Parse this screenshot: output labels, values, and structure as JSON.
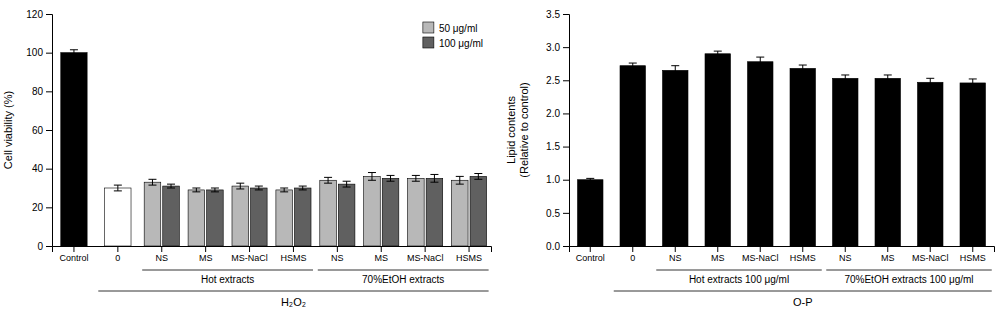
{
  "chart_data": [
    {
      "type": "bar",
      "ylabel": "Cell viability (%)",
      "xlabel": "H₂O₂",
      "annotations": [
        "Hot extracts",
        "70%EtOH extracts"
      ],
      "categories": [
        "Control",
        "0",
        "NS",
        "MS",
        "MS-NaCl",
        "HSMS",
        "NS",
        "MS",
        "MS-NaCl",
        "HSMS"
      ],
      "series": [
        {
          "values": [
            100,
            30,
            null,
            null,
            null,
            null,
            null,
            null,
            null,
            null
          ],
          "errors": [
            1.5,
            1.5,
            null,
            null,
            null,
            null,
            null,
            null,
            null,
            null
          ],
          "colors": [
            "#000000",
            "#ffffff",
            null,
            null,
            null,
            null,
            null,
            null,
            null,
            null
          ]
        },
        {
          "name": "50 μg/ml",
          "color": "#b8b8b8",
          "values": [
            null,
            null,
            33,
            29,
            31,
            29,
            34,
            36,
            35,
            34
          ],
          "errors": [
            null,
            null,
            1.5,
            1.0,
            1.5,
            1.0,
            1.5,
            2.0,
            1.5,
            2.0
          ]
        },
        {
          "name": "100 μg/ml",
          "color": "#606060",
          "values": [
            null,
            null,
            31,
            29,
            30,
            30,
            32,
            35,
            35,
            36
          ],
          "errors": [
            null,
            null,
            1.0,
            1.0,
            1.0,
            1.0,
            1.5,
            1.5,
            2.0,
            1.5
          ]
        }
      ],
      "ylim": [
        0,
        120
      ],
      "yticks": [
        0,
        20,
        40,
        60,
        80,
        100,
        120
      ],
      "legend": "upper right"
    },
    {
      "type": "bar",
      "ylabel": "Lipid contents\n(Relative to control)",
      "xlabel": "O-P",
      "annotations": [
        "Hot extracts 100 μg/ml",
        "70%EtOH extracts 100 μg/ml"
      ],
      "categories": [
        "Control",
        "0",
        "NS",
        "MS",
        "MS-NaCl",
        "HSMS",
        "NS",
        "MS",
        "MS-NaCl",
        "HSMS"
      ],
      "values": [
        1.0,
        2.72,
        2.65,
        2.9,
        2.78,
        2.68,
        2.53,
        2.53,
        2.47,
        2.46
      ],
      "errors": [
        0.02,
        0.04,
        0.07,
        0.04,
        0.07,
        0.05,
        0.05,
        0.05,
        0.06,
        0.06
      ],
      "color": "#000000",
      "ylim": [
        0,
        3.5
      ],
      "yticks": [
        {
          "value": 0,
          "label": "0.0"
        },
        0.5,
        {
          "value": 1.0,
          "label": "1.0"
        },
        1.5,
        {
          "value": 2.0,
          "label": "2.0"
        },
        2.5,
        {
          "value": 3.0,
          "label": "3.0"
        },
        3.5
      ]
    }
  ]
}
